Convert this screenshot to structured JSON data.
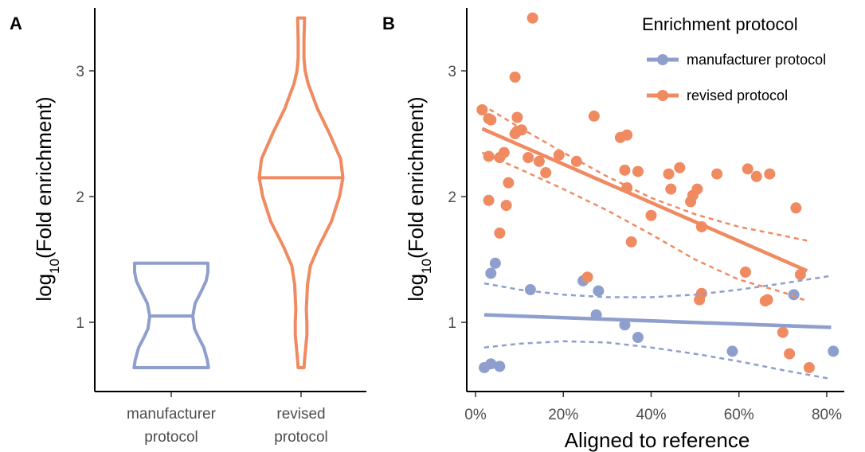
{
  "colors": {
    "manufacturer": "#8f9fcd",
    "revised": "#f08a60",
    "axis": "#000000",
    "tick_text": "#4d4d4d"
  },
  "chart_data": [
    {
      "panel": "A",
      "type": "violin",
      "ylabel_main": "log",
      "ylabel_sub": "10",
      "ylabel_rest": "(Fold enrichment)",
      "ylim": [
        0.45,
        3.5
      ],
      "yticks": [
        "1",
        "2",
        "3"
      ],
      "categories": [
        "manufacturer protocol",
        "revised protocol"
      ],
      "category_lines": [
        [
          "manufacturer",
          "protocol"
        ],
        [
          "revised",
          "protocol"
        ]
      ],
      "series": [
        {
          "key": "manufacturer",
          "median": 1.05,
          "profile": [
            [
              0.64,
              0.64
            ],
            [
              0.7,
              0.62
            ],
            [
              0.8,
              0.56
            ],
            [
              0.88,
              0.47
            ],
            [
              0.95,
              0.4
            ],
            [
              1.05,
              0.37
            ],
            [
              1.15,
              0.41
            ],
            [
              1.25,
              0.52
            ],
            [
              1.33,
              0.6
            ],
            [
              1.4,
              0.63
            ],
            [
              1.47,
              0.63
            ]
          ]
        },
        {
          "key": "revised",
          "median": 2.15,
          "profile": [
            [
              0.64,
              0.05
            ],
            [
              0.7,
              0.06
            ],
            [
              0.8,
              0.08
            ],
            [
              0.9,
              0.1
            ],
            [
              1.0,
              0.1
            ],
            [
              1.1,
              0.09
            ],
            [
              1.2,
              0.1
            ],
            [
              1.3,
              0.11
            ],
            [
              1.45,
              0.16
            ],
            [
              1.6,
              0.3
            ],
            [
              1.8,
              0.52
            ],
            [
              2.0,
              0.66
            ],
            [
              2.15,
              0.72
            ],
            [
              2.3,
              0.68
            ],
            [
              2.5,
              0.49
            ],
            [
              2.7,
              0.28
            ],
            [
              2.9,
              0.12
            ],
            [
              3.0,
              0.07
            ],
            [
              3.1,
              0.05
            ],
            [
              3.25,
              0.05
            ],
            [
              3.42,
              0.06
            ]
          ]
        }
      ]
    },
    {
      "panel": "B",
      "type": "scatter",
      "xlabel": "Aligned to reference",
      "ylabel_main": "log",
      "ylabel_sub": "10",
      "ylabel_rest": "(Fold enrichment)",
      "xlim": [
        -0.02,
        0.84
      ],
      "ylim": [
        0.45,
        3.5
      ],
      "xticks": [
        0,
        0.2,
        0.4,
        0.6,
        0.8
      ],
      "xtick_labels": [
        "0%",
        "20%",
        "40%",
        "60%",
        "80%"
      ],
      "yticks": [
        "1",
        "2",
        "3"
      ],
      "legend": {
        "title": "Enrichment protocol",
        "position": "top-right",
        "entries": [
          "manufacturer protocol",
          "revised protocol"
        ]
      },
      "series": [
        {
          "key": "manufacturer",
          "name": "manufacturer protocol",
          "points": [
            [
              0.02,
              0.64
            ],
            [
              0.035,
              0.67
            ],
            [
              0.055,
              0.65
            ],
            [
              0.035,
              1.39
            ],
            [
              0.045,
              1.47
            ],
            [
              0.125,
              1.26
            ],
            [
              0.245,
              1.33
            ],
            [
              0.28,
              1.25
            ],
            [
              0.275,
              1.06
            ],
            [
              0.34,
              0.98
            ],
            [
              0.37,
              0.88
            ],
            [
              0.585,
              0.77
            ],
            [
              0.725,
              1.22
            ],
            [
              0.815,
              0.77
            ]
          ],
          "fit": [
            [
              0.02,
              1.06
            ],
            [
              0.81,
              0.96
            ]
          ],
          "ci_upper": [
            [
              0.02,
              1.31
            ],
            [
              0.1,
              1.26
            ],
            [
              0.2,
              1.22
            ],
            [
              0.3,
              1.2
            ],
            [
              0.4,
              1.2
            ],
            [
              0.5,
              1.22
            ],
            [
              0.6,
              1.26
            ],
            [
              0.7,
              1.31
            ],
            [
              0.81,
              1.37
            ]
          ],
          "ci_lower": [
            [
              0.02,
              0.8
            ],
            [
              0.1,
              0.83
            ],
            [
              0.2,
              0.85
            ],
            [
              0.3,
              0.84
            ],
            [
              0.4,
              0.8
            ],
            [
              0.5,
              0.75
            ],
            [
              0.6,
              0.69
            ],
            [
              0.7,
              0.62
            ],
            [
              0.81,
              0.55
            ]
          ]
        },
        {
          "key": "revised",
          "name": "revised protocol",
          "points": [
            [
              0.015,
              2.69
            ],
            [
              0.03,
              2.62
            ],
            [
              0.035,
              2.61
            ],
            [
              0.03,
              2.32
            ],
            [
              0.055,
              2.31
            ],
            [
              0.065,
              2.35
            ],
            [
              0.03,
              1.97
            ],
            [
              0.055,
              1.71
            ],
            [
              0.07,
              1.93
            ],
            [
              0.075,
              2.11
            ],
            [
              0.09,
              2.5
            ],
            [
              0.095,
              2.52
            ],
            [
              0.105,
              2.53
            ],
            [
              0.095,
              2.63
            ],
            [
              0.09,
              2.95
            ],
            [
              0.13,
              3.42
            ],
            [
              0.12,
              2.31
            ],
            [
              0.145,
              2.28
            ],
            [
              0.16,
              2.19
            ],
            [
              0.19,
              2.33
            ],
            [
              0.23,
              2.28
            ],
            [
              0.255,
              1.36
            ],
            [
              0.27,
              2.64
            ],
            [
              0.33,
              2.47
            ],
            [
              0.345,
              2.49
            ],
            [
              0.34,
              2.21
            ],
            [
              0.345,
              2.07
            ],
            [
              0.355,
              1.64
            ],
            [
              0.37,
              2.2
            ],
            [
              0.4,
              1.85
            ],
            [
              0.44,
              2.18
            ],
            [
              0.445,
              2.06
            ],
            [
              0.465,
              2.23
            ],
            [
              0.49,
              1.96
            ],
            [
              0.495,
              2.01
            ],
            [
              0.505,
              2.06
            ],
            [
              0.51,
              1.18
            ],
            [
              0.515,
              1.23
            ],
            [
              0.515,
              1.76
            ],
            [
              0.55,
              2.18
            ],
            [
              0.615,
              1.4
            ],
            [
              0.62,
              2.22
            ],
            [
              0.64,
              2.16
            ],
            [
              0.66,
              1.17
            ],
            [
              0.665,
              1.18
            ],
            [
              0.67,
              2.18
            ],
            [
              0.7,
              0.92
            ],
            [
              0.715,
              0.75
            ],
            [
              0.73,
              1.91
            ],
            [
              0.74,
              1.38
            ],
            [
              0.76,
              0.64
            ]
          ],
          "fit": [
            [
              0.015,
              2.54
            ],
            [
              0.755,
              1.41
            ]
          ],
          "ci_upper": [
            [
              0.015,
              2.73
            ],
            [
              0.1,
              2.55
            ],
            [
              0.2,
              2.35
            ],
            [
              0.3,
              2.16
            ],
            [
              0.4,
              1.99
            ],
            [
              0.5,
              1.86
            ],
            [
              0.6,
              1.76
            ],
            [
              0.7,
              1.69
            ],
            [
              0.755,
              1.65
            ]
          ],
          "ci_lower": [
            [
              0.015,
              2.35
            ],
            [
              0.1,
              2.22
            ],
            [
              0.2,
              2.06
            ],
            [
              0.3,
              1.89
            ],
            [
              0.4,
              1.7
            ],
            [
              0.5,
              1.5
            ],
            [
              0.6,
              1.34
            ],
            [
              0.7,
              1.24
            ],
            [
              0.755,
              1.17
            ]
          ]
        }
      ]
    }
  ]
}
